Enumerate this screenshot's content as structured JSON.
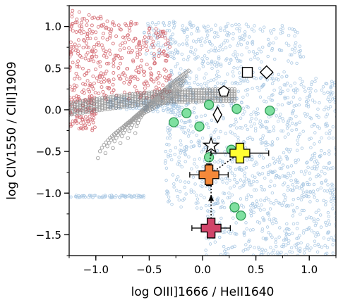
{
  "chart_data": {
    "type": "scatter",
    "title": "",
    "xlabel": "log OIII]1666 / HeII1640",
    "ylabel": "log CIV1550 / CIII]1909",
    "xlim": [
      -1.25,
      1.25
    ],
    "ylim": [
      -1.75,
      1.25
    ],
    "xticks": [
      -1.0,
      -0.5,
      0.0,
      0.5,
      1.0
    ],
    "yticks": [
      -1.5,
      -1.0,
      -0.5,
      0.0,
      0.5,
      1.0
    ],
    "xtick_labels": [
      "−1.0",
      "−0.5",
      "0.0",
      "0.5",
      "1.0"
    ],
    "ytick_labels": [
      "−1.5",
      "−1.0",
      "−0.5",
      "0.0",
      "0.5",
      "1.0"
    ],
    "grid": false,
    "legend": null,
    "colors": {
      "blue_models": "#6a9fcf",
      "red_models": "#c8404a",
      "grey_models": "#707070",
      "green_points": "#7fe0a0",
      "green_edge": "#2e9a55",
      "yellow_cross": "#ffff33",
      "orange_cross": "#f5893a",
      "magenta_cross": "#d1456a"
    },
    "series": [
      {
        "marker": "circle",
        "values": [
          {
            "x": -0.27,
            "y": -0.15
          },
          {
            "x": -0.15,
            "y": -0.04
          },
          {
            "x": -0.03,
            "y": -0.2
          },
          {
            "x": 0.06,
            "y": 0.06
          },
          {
            "x": 0.32,
            "y": 0.01
          },
          {
            "x": 0.63,
            "y": -0.01
          },
          {
            "x": 0.06,
            "y": -0.57
          },
          {
            "x": 0.27,
            "y": -0.48
          },
          {
            "x": 0.3,
            "y": -1.17
          },
          {
            "x": 0.36,
            "y": -1.27
          }
        ]
      },
      {
        "marker": "open-symbols",
        "values": [
          {
            "symbol": "square",
            "x": 0.42,
            "y": 0.45
          },
          {
            "symbol": "diamond",
            "x": 0.6,
            "y": 0.45
          },
          {
            "symbol": "pentagon",
            "x": 0.2,
            "y": 0.22
          },
          {
            "symbol": "thin-diamond",
            "x": 0.14,
            "y": -0.06
          },
          {
            "symbol": "star",
            "x": 0.08,
            "y": -0.43
          }
        ]
      },
      {
        "marker": "cross-with-errorbars",
        "values": [
          {
            "color": "yellow",
            "x": 0.35,
            "y": -0.52,
            "xerr": 0.27,
            "yerr": 0.06
          },
          {
            "color": "orange",
            "x": 0.06,
            "y": -0.78,
            "xerr": 0.18,
            "yerr": 0.13
          },
          {
            "color": "magenta",
            "x": 0.08,
            "y": -1.42,
            "xerr": 0.18,
            "yerr": 0.09
          }
        ]
      }
    ]
  }
}
